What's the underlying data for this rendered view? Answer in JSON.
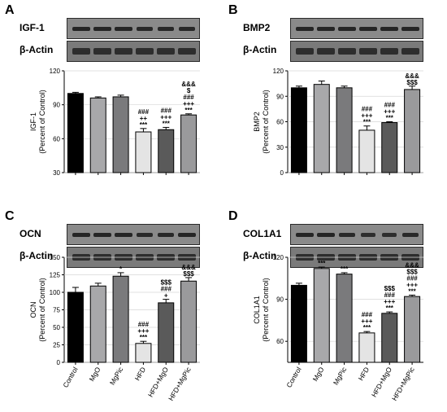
{
  "chart_data": [
    {
      "type": "bar",
      "panel": "A",
      "blot": "IGF-1",
      "loading": "β-Actin",
      "ylabel": "IGF-1",
      "ylabel2": "(Percent of Control)",
      "ylim": [
        30,
        120
      ],
      "yticks": [
        "30",
        "60",
        "90",
        "120"
      ],
      "categories": [
        "Control",
        "MgO",
        "MgPic",
        "HFD",
        "HFD+MgO",
        "HFD+MgPic"
      ],
      "values": [
        100,
        96,
        97,
        66,
        68,
        81
      ],
      "errors": [
        1,
        1,
        1.5,
        3,
        2,
        1
      ],
      "annotations": [
        [],
        [],
        [],
        [
          "###",
          "++",
          "***"
        ],
        [
          "###",
          "+++",
          "***"
        ],
        [
          "&&&",
          "$",
          "###",
          "+++",
          "***"
        ]
      ]
    },
    {
      "type": "bar",
      "panel": "B",
      "blot": "BMP2",
      "loading": "β-Actin",
      "ylabel": "BMP2",
      "ylabel2": "(Percent of Control)",
      "ylim": [
        0,
        120
      ],
      "yticks": [
        "0",
        "30",
        "60",
        "90",
        "120"
      ],
      "categories": [
        "Control",
        "MgO",
        "MgPic",
        "HFD",
        "HFD+MgO",
        "HFD+MgPic"
      ],
      "values": [
        100,
        104,
        100,
        50,
        59,
        98
      ],
      "errors": [
        2,
        4,
        2,
        5,
        1,
        4
      ],
      "annotations": [
        [],
        [],
        [],
        [
          "###",
          "+++",
          "***"
        ],
        [
          "###",
          "+++",
          "***"
        ],
        [
          "&&&",
          "$$$"
        ]
      ]
    },
    {
      "type": "bar",
      "panel": "C",
      "blot": "OCN",
      "loading": "β-Actin",
      "ylabel": "OCN",
      "ylabel2": "(Percent of Control)",
      "ylim": [
        0,
        150
      ],
      "yticks": [
        "0",
        "25",
        "50",
        "75",
        "100",
        "125",
        "150"
      ],
      "categories": [
        "Control",
        "MgO",
        "MgPic",
        "HFD",
        "HFD+MgO",
        "HFD+MgPic"
      ],
      "values": [
        100,
        109,
        123,
        27,
        85,
        116
      ],
      "errors": [
        7,
        4,
        5,
        3,
        5,
        5
      ],
      "annotations": [
        [],
        [],
        [
          "*"
        ],
        [
          "###",
          "+++",
          "***"
        ],
        [
          "$$$",
          "###",
          "+"
        ],
        [
          "&&&",
          "$$$"
        ]
      ]
    },
    {
      "type": "bar",
      "panel": "D",
      "blot": "COL1A1",
      "loading": "β-Actin",
      "ylabel": "COL1A1",
      "ylabel2": "(Percent of Control)",
      "ylim": [
        45,
        120
      ],
      "yticks": [
        "60",
        "90",
        "120"
      ],
      "categories": [
        "Control",
        "MgO",
        "MgPic",
        "HFD",
        "HFD+MgO",
        "HFD+MgPic"
      ],
      "values": [
        100,
        112,
        108,
        66,
        80,
        92
      ],
      "errors": [
        1.5,
        1,
        1,
        1,
        1,
        1
      ],
      "annotations": [
        [],
        [
          "***"
        ],
        [
          "***"
        ],
        [
          "###",
          "+++",
          "***"
        ],
        [
          "$$$",
          "###",
          "+++",
          "***"
        ],
        [
          "&&&",
          "$$$",
          "###",
          "+++",
          "***"
        ]
      ]
    }
  ],
  "bar_colors": [
    "#000000",
    "#a8a8aa",
    "#7a7a7c",
    "#e4e4e4",
    "#5a5a5a",
    "#9a9a9c"
  ]
}
